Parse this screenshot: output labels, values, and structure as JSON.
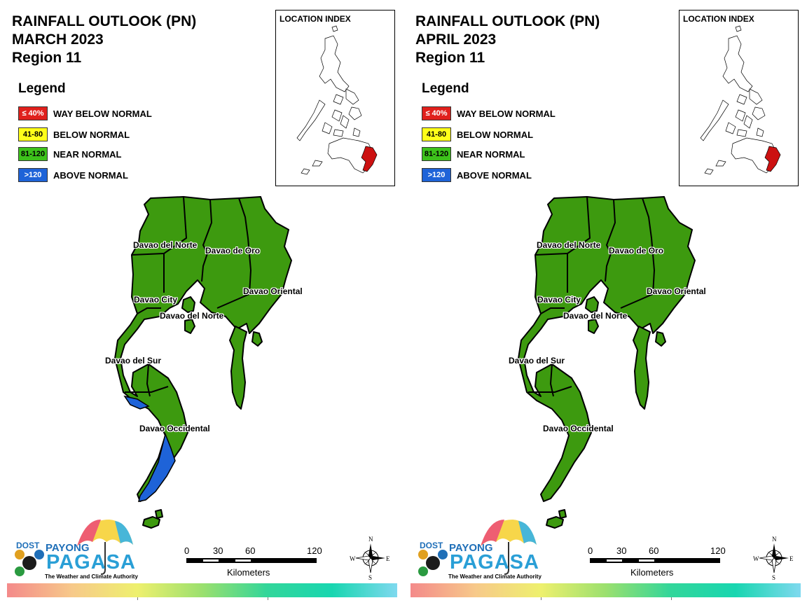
{
  "panels": [
    {
      "title": {
        "line1": "RAINFALL OUTLOOK (PN)",
        "line2": "MARCH 2023",
        "line3": "Region 11"
      },
      "legend": {
        "title": "Legend",
        "items": [
          {
            "code": "≤ 40%",
            "label": "WAY BELOW NORMAL",
            "color": "#e0201c",
            "text_color": "#ffffff"
          },
          {
            "code": "41-80",
            "label": "BELOW NORMAL",
            "color": "#ffff1a",
            "text_color": "#000000"
          },
          {
            "code": "81-120",
            "label": "NEAR NORMAL",
            "color": "#3dc21b",
            "text_color": "#000000"
          },
          {
            "code": ">120",
            "label": "ABOVE NORMAL",
            "color": "#1e63d8",
            "text_color": "#ffffff"
          }
        ]
      },
      "location_index": {
        "title": "LOCATION INDEX",
        "highlight_color": "#cc1111"
      },
      "provinces": [
        {
          "name": "Davao del Norte",
          "category": "NEAR NORMAL"
        },
        {
          "name": "Davao de Oro",
          "category": "NEAR NORMAL"
        },
        {
          "name": "Davao Oriental",
          "category": "NEAR NORMAL"
        },
        {
          "name": "Davao City",
          "category": "NEAR NORMAL"
        },
        {
          "name": "Davao del Norte",
          "category": "NEAR NORMAL"
        },
        {
          "name": "Davao del Sur",
          "category": "NEAR NORMAL"
        },
        {
          "name": "Davao Occidental",
          "category": "NEAR NORMAL, partly ABOVE NORMAL"
        }
      ],
      "scale": {
        "ticks": [
          "0",
          "30",
          "60",
          "120"
        ],
        "unit": "Kilometers"
      },
      "compass": {
        "n": "N",
        "s": "S",
        "e": "E",
        "w": "W"
      },
      "logo": {
        "dost": "DOST",
        "payong": "PAYONG",
        "pagasa": "PAGASA",
        "tagline": "The Weather and Climate Authority"
      }
    },
    {
      "title": {
        "line1": "RAINFALL OUTLOOK (PN)",
        "line2": "APRIL 2023",
        "line3": "Region 11"
      },
      "legend": {
        "title": "Legend",
        "items": [
          {
            "code": "≤ 40%",
            "label": "WAY BELOW NORMAL",
            "color": "#e0201c",
            "text_color": "#ffffff"
          },
          {
            "code": "41-80",
            "label": "BELOW NORMAL",
            "color": "#ffff1a",
            "text_color": "#000000"
          },
          {
            "code": "81-120",
            "label": "NEAR NORMAL",
            "color": "#3dc21b",
            "text_color": "#000000"
          },
          {
            "code": ">120",
            "label": "ABOVE NORMAL",
            "color": "#1e63d8",
            "text_color": "#ffffff"
          }
        ]
      },
      "location_index": {
        "title": "LOCATION INDEX",
        "highlight_color": "#cc1111"
      },
      "provinces": [
        {
          "name": "Davao del Norte",
          "category": "NEAR NORMAL"
        },
        {
          "name": "Davao de Oro",
          "category": "NEAR NORMAL"
        },
        {
          "name": "Davao Oriental",
          "category": "NEAR NORMAL"
        },
        {
          "name": "Davao City",
          "category": "NEAR NORMAL"
        },
        {
          "name": "Davao del Norte",
          "category": "NEAR NORMAL"
        },
        {
          "name": "Davao del Sur",
          "category": "NEAR NORMAL"
        },
        {
          "name": "Davao Occidental",
          "category": "NEAR NORMAL"
        }
      ],
      "scale": {
        "ticks": [
          "0",
          "30",
          "60",
          "120"
        ],
        "unit": "Kilometers"
      },
      "compass": {
        "n": "N",
        "s": "S",
        "e": "E",
        "w": "W"
      },
      "logo": {
        "dost": "DOST",
        "payong": "PAYONG",
        "pagasa": "PAGASA",
        "tagline": "The Weather and Climate Authority"
      }
    }
  ],
  "colors": {
    "map_fill": "#3d9a0f",
    "above_normal": "#1e63d8",
    "border": "#000000"
  }
}
